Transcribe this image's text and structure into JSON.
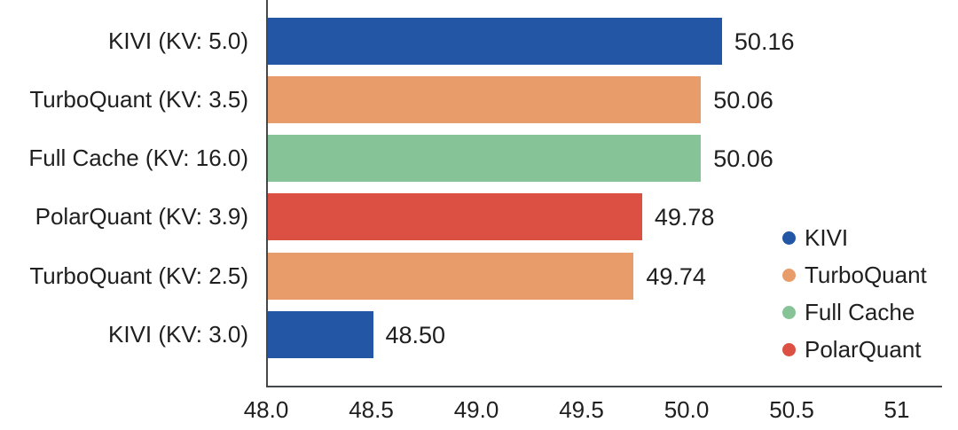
{
  "chart_data": {
    "type": "bar",
    "orientation": "horizontal",
    "title": "",
    "xlabel": "",
    "ylabel": "",
    "categories": [
      "KIVI (KV: 5.0)",
      "TurboQuant (KV: 3.5)",
      "Full Cache (KV: 16.0)",
      "PolarQuant (KV: 3.9)",
      "TurboQuant (KV: 2.5)",
      "KIVI (KV: 3.0)"
    ],
    "values": [
      50.16,
      50.06,
      50.06,
      49.78,
      49.74,
      48.5
    ],
    "value_labels": [
      "50.16",
      "50.06",
      "50.06",
      "49.78",
      "49.74",
      "48.50"
    ],
    "bar_series": [
      "KIVI",
      "TurboQuant",
      "Full Cache",
      "PolarQuant",
      "TurboQuant",
      "KIVI"
    ],
    "bar_colors": [
      "#2356A4",
      "#E89C6A",
      "#86C498",
      "#DB5043",
      "#E89C6A",
      "#2356A4"
    ],
    "xlim": [
      48.0,
      51.22
    ],
    "x_ticks": [
      {
        "value": 48.0,
        "label": "48.0"
      },
      {
        "value": 48.5,
        "label": "48.5"
      },
      {
        "value": 49.0,
        "label": "49.0"
      },
      {
        "value": 49.5,
        "label": "49.5"
      },
      {
        "value": 50.0,
        "label": "50.0"
      },
      {
        "value": 50.5,
        "label": "50.5"
      },
      {
        "value": 51.0,
        "label": "51"
      }
    ],
    "grid": false,
    "legend_position": "right-middle",
    "legend": [
      {
        "label": "KIVI",
        "color": "#2356A4"
      },
      {
        "label": "TurboQuant",
        "color": "#E89C6A"
      },
      {
        "label": "Full Cache",
        "color": "#86C498"
      },
      {
        "label": "PolarQuant",
        "color": "#DB5043"
      }
    ]
  },
  "colors": {
    "background": "#ffffff",
    "axis": "#45484b",
    "text": "#1f1f1f",
    "kivi_blue": "#2356A4",
    "turboquant_orange": "#E89C6A",
    "full_cache_green": "#86C498",
    "polarquant_red": "#DB5043"
  }
}
